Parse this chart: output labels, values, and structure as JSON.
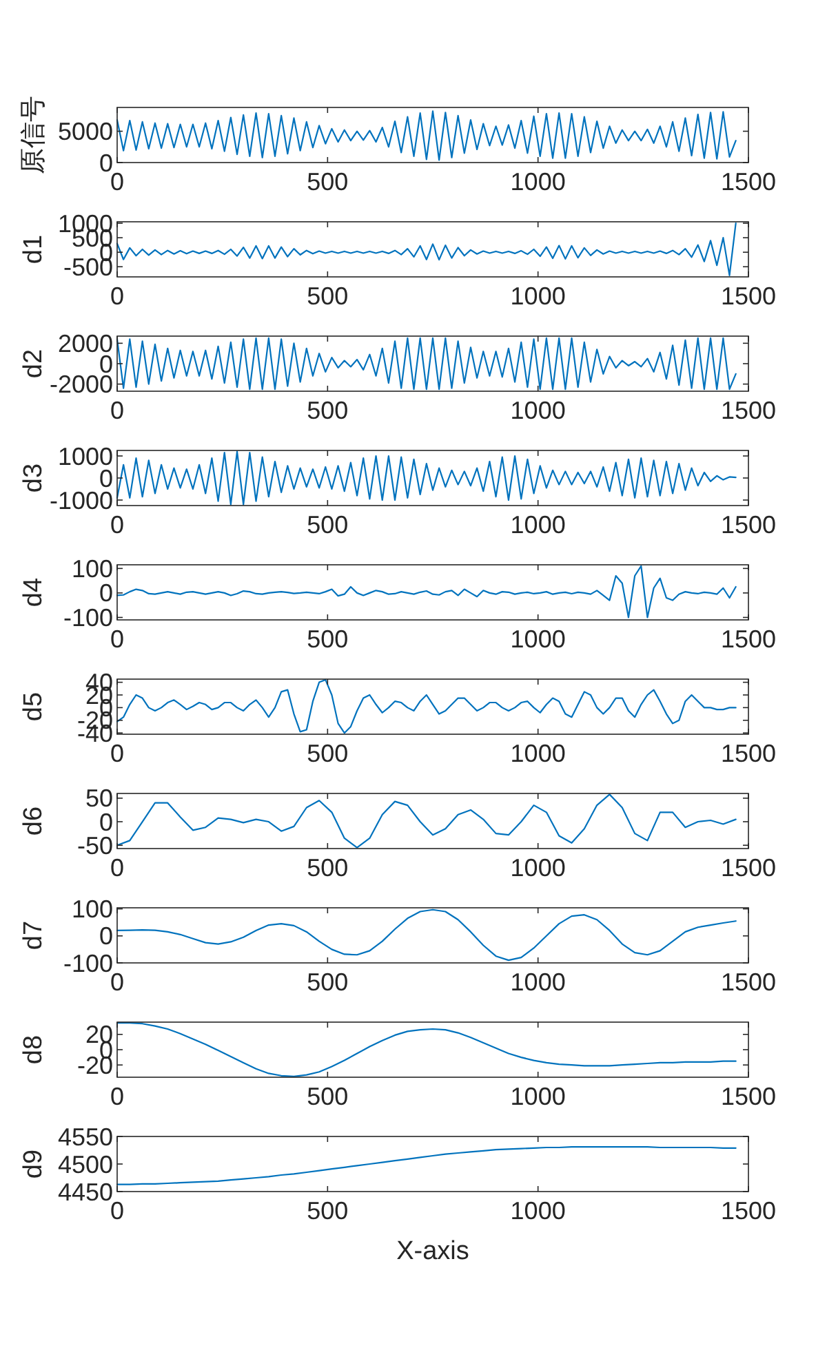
{
  "chart_data": [
    {
      "type": "line",
      "ylabel": "原信号",
      "xlim": [
        0,
        1500
      ],
      "xticks": [
        0,
        500,
        1000,
        1500
      ],
      "ylim": [
        0,
        8800
      ],
      "yticks": [
        0,
        5000
      ],
      "x": [
        0,
        15,
        30,
        45,
        60,
        75,
        90,
        105,
        120,
        135,
        150,
        165,
        180,
        195,
        210,
        225,
        240,
        255,
        270,
        285,
        300,
        315,
        330,
        345,
        360,
        375,
        390,
        405,
        420,
        435,
        450,
        465,
        480,
        495,
        510,
        525,
        540,
        555,
        570,
        585,
        600,
        615,
        630,
        645,
        660,
        675,
        690,
        705,
        720,
        735,
        750,
        765,
        780,
        795,
        810,
        825,
        840,
        855,
        870,
        885,
        900,
        915,
        930,
        945,
        960,
        975,
        990,
        1005,
        1020,
        1035,
        1050,
        1065,
        1080,
        1095,
        1110,
        1125,
        1140,
        1155,
        1170,
        1185,
        1200,
        1215,
        1230,
        1245,
        1260,
        1275,
        1290,
        1305,
        1320,
        1335,
        1350,
        1365,
        1380,
        1395,
        1410,
        1425,
        1440,
        1455,
        1470
      ],
      "series": [
        {
          "color": "#0072bd",
          "values": [
            6800,
            1900,
            6700,
            2000,
            6500,
            2200,
            6300,
            2300,
            6200,
            2400,
            6100,
            2500,
            6100,
            2500,
            6300,
            2200,
            6700,
            1800,
            7200,
            1300,
            7600,
            1000,
            7900,
            800,
            7800,
            1000,
            7500,
            1400,
            7100,
            1900,
            6500,
            2400,
            5900,
            3000,
            5400,
            3300,
            5200,
            3500,
            5000,
            3600,
            5100,
            3300,
            5600,
            2500,
            6600,
            1600,
            7300,
            1000,
            7900,
            500,
            8200,
            400,
            8000,
            800,
            7500,
            1500,
            6800,
            2100,
            6200,
            2700,
            5800,
            2800,
            6000,
            2300,
            6700,
            1500,
            7400,
            1000,
            7800,
            700,
            7900,
            700,
            7800,
            1000,
            7300,
            1600,
            6600,
            2300,
            5800,
            3100,
            5200,
            3500,
            5000,
            3500,
            5300,
            3100,
            5800,
            2500,
            6500,
            1800,
            7100,
            1100,
            7700,
            700,
            8000,
            600,
            8100,
            900,
            3500
          ]
        }
      ]
    },
    {
      "type": "line",
      "ylabel": "d1",
      "xlim": [
        0,
        1500
      ],
      "xticks": [
        0,
        500,
        1000,
        1500
      ],
      "ylim": [
        -850,
        1050
      ],
      "yticks": [
        -500,
        0,
        500,
        1000
      ],
      "x": [
        0,
        15,
        30,
        45,
        60,
        75,
        90,
        105,
        120,
        135,
        150,
        165,
        180,
        195,
        210,
        225,
        240,
        255,
        270,
        285,
        300,
        315,
        330,
        345,
        360,
        375,
        390,
        405,
        420,
        435,
        450,
        465,
        480,
        495,
        510,
        525,
        540,
        555,
        570,
        585,
        600,
        615,
        630,
        645,
        660,
        675,
        690,
        705,
        720,
        735,
        750,
        765,
        780,
        795,
        810,
        825,
        840,
        855,
        870,
        885,
        900,
        915,
        930,
        945,
        960,
        975,
        990,
        1005,
        1020,
        1035,
        1050,
        1065,
        1080,
        1095,
        1110,
        1125,
        1140,
        1155,
        1170,
        1185,
        1200,
        1215,
        1230,
        1245,
        1260,
        1275,
        1290,
        1305,
        1320,
        1335,
        1350,
        1365,
        1380,
        1395,
        1410,
        1425,
        1440,
        1455,
        1470
      ],
      "series": [
        {
          "color": "#0072bd",
          "values": [
            300,
            -250,
            150,
            -120,
            100,
            -100,
            80,
            -80,
            60,
            -60,
            50,
            -50,
            40,
            -40,
            40,
            -40,
            60,
            -70,
            100,
            -130,
            170,
            -200,
            220,
            -220,
            220,
            -200,
            180,
            -150,
            120,
            -90,
            60,
            -50,
            40,
            -30,
            30,
            -30,
            30,
            -30,
            30,
            -30,
            30,
            -30,
            30,
            -40,
            60,
            -80,
            120,
            -160,
            220,
            -250,
            280,
            -260,
            240,
            -200,
            160,
            -120,
            80,
            -60,
            40,
            -30,
            30,
            -30,
            30,
            -40,
            50,
            -70,
            100,
            -140,
            180,
            -210,
            230,
            -230,
            220,
            -190,
            150,
            -110,
            80,
            -60,
            40,
            -30,
            30,
            -30,
            30,
            -30,
            30,
            -30,
            40,
            -40,
            60,
            -80,
            120,
            -170,
            250,
            -320,
            400,
            -450,
            500,
            -800,
            1000
          ]
        }
      ]
    },
    {
      "type": "line",
      "ylabel": "d2",
      "xlim": [
        0,
        1500
      ],
      "xticks": [
        0,
        500,
        1000,
        1500
      ],
      "ylim": [
        -2700,
        2700
      ],
      "yticks": [
        -2000,
        0,
        2000
      ],
      "x": [
        0,
        15,
        30,
        45,
        60,
        75,
        90,
        105,
        120,
        135,
        150,
        165,
        180,
        195,
        210,
        225,
        240,
        255,
        270,
        285,
        300,
        315,
        330,
        345,
        360,
        375,
        390,
        405,
        420,
        435,
        450,
        465,
        480,
        495,
        510,
        525,
        540,
        555,
        570,
        585,
        600,
        615,
        630,
        645,
        660,
        675,
        690,
        705,
        720,
        735,
        750,
        765,
        780,
        795,
        810,
        825,
        840,
        855,
        870,
        885,
        900,
        915,
        930,
        945,
        960,
        975,
        990,
        1005,
        1020,
        1035,
        1050,
        1065,
        1080,
        1095,
        1110,
        1125,
        1140,
        1155,
        1170,
        1185,
        1200,
        1215,
        1230,
        1245,
        1260,
        1275,
        1290,
        1305,
        1320,
        1335,
        1350,
        1365,
        1380,
        1395,
        1410,
        1425,
        1440,
        1455,
        1470
      ],
      "series": [
        {
          "color": "#0072bd",
          "values": [
            2400,
            -2400,
            2400,
            -2300,
            2200,
            -2000,
            1900,
            -1700,
            1500,
            -1400,
            1300,
            -1200,
            1200,
            -1200,
            1300,
            -1500,
            1700,
            -1900,
            2100,
            -2300,
            2400,
            -2500,
            2500,
            -2500,
            2500,
            -2500,
            2400,
            -2200,
            2000,
            -1800,
            1500,
            -1200,
            1000,
            -800,
            600,
            -400,
            300,
            -300,
            400,
            -600,
            900,
            -1200,
            1500,
            -1900,
            2200,
            -2400,
            2500,
            -2500,
            2500,
            -2500,
            2500,
            -2500,
            2500,
            -2400,
            2200,
            -1900,
            1600,
            -1400,
            1200,
            -1200,
            1200,
            -1300,
            1500,
            -1800,
            2100,
            -2300,
            2400,
            -2500,
            2500,
            -2500,
            2500,
            -2500,
            2500,
            -2300,
            2100,
            -1800,
            1400,
            -1000,
            700,
            -400,
            300,
            -200,
            200,
            -300,
            500,
            -800,
            1100,
            -1500,
            1800,
            -2100,
            2300,
            -2400,
            2500,
            -2500,
            2500,
            -2500,
            2500,
            -2500,
            -1000
          ]
        }
      ]
    },
    {
      "type": "line",
      "ylabel": "d3",
      "xlim": [
        0,
        1500
      ],
      "xticks": [
        0,
        500,
        1000,
        1500
      ],
      "ylim": [
        -1250,
        1250
      ],
      "yticks": [
        -1000,
        0,
        1000
      ],
      "x": [
        0,
        15,
        30,
        45,
        60,
        75,
        90,
        105,
        120,
        135,
        150,
        165,
        180,
        195,
        210,
        225,
        240,
        255,
        270,
        285,
        300,
        315,
        330,
        345,
        360,
        375,
        390,
        405,
        420,
        435,
        450,
        465,
        480,
        495,
        510,
        525,
        540,
        555,
        570,
        585,
        600,
        615,
        630,
        645,
        660,
        675,
        690,
        705,
        720,
        735,
        750,
        765,
        780,
        795,
        810,
        825,
        840,
        855,
        870,
        885,
        900,
        915,
        930,
        945,
        960,
        975,
        990,
        1005,
        1020,
        1035,
        1050,
        1065,
        1080,
        1095,
        1110,
        1125,
        1140,
        1155,
        1170,
        1185,
        1200,
        1215,
        1230,
        1245,
        1260,
        1275,
        1290,
        1305,
        1320,
        1335,
        1350,
        1365,
        1380,
        1395,
        1410,
        1425,
        1440,
        1455,
        1470
      ],
      "series": [
        {
          "color": "#0072bd",
          "values": [
            -900,
            600,
            -900,
            900,
            -850,
            800,
            -700,
            600,
            -500,
            450,
            -450,
            400,
            -500,
            600,
            -700,
            900,
            -1050,
            1150,
            -1200,
            1200,
            -1200,
            1150,
            -1050,
            950,
            -850,
            750,
            -650,
            550,
            -500,
            450,
            -400,
            400,
            -450,
            500,
            -500,
            550,
            -600,
            700,
            -800,
            900,
            -950,
            1000,
            -1000,
            1000,
            -1000,
            950,
            -900,
            850,
            -750,
            650,
            -550,
            450,
            -400,
            350,
            -300,
            300,
            -350,
            450,
            -600,
            750,
            -850,
            950,
            -1000,
            1000,
            -950,
            850,
            -700,
            550,
            -450,
            350,
            -300,
            300,
            -300,
            250,
            -250,
            300,
            -400,
            500,
            -600,
            700,
            -800,
            850,
            -900,
            900,
            -850,
            800,
            -800,
            750,
            -700,
            650,
            -550,
            450,
            -350,
            250,
            -150,
            100,
            -80,
            50,
            30
          ]
        }
      ]
    },
    {
      "type": "line",
      "ylabel": "d4",
      "xlim": [
        0,
        1500
      ],
      "xticks": [
        0,
        500,
        1000,
        1500
      ],
      "ylim": [
        -110,
        115
      ],
      "yticks": [
        -100,
        0,
        100
      ],
      "x": [
        0,
        15,
        30,
        45,
        60,
        75,
        90,
        105,
        120,
        135,
        150,
        165,
        180,
        195,
        210,
        225,
        240,
        255,
        270,
        285,
        300,
        315,
        330,
        345,
        360,
        375,
        390,
        405,
        420,
        435,
        450,
        465,
        480,
        495,
        510,
        525,
        540,
        555,
        570,
        585,
        600,
        615,
        630,
        645,
        660,
        675,
        690,
        705,
        720,
        735,
        750,
        765,
        780,
        795,
        810,
        825,
        840,
        855,
        870,
        885,
        900,
        915,
        930,
        945,
        960,
        975,
        990,
        1005,
        1020,
        1035,
        1050,
        1065,
        1080,
        1095,
        1110,
        1125,
        1140,
        1155,
        1170,
        1185,
        1200,
        1215,
        1230,
        1245,
        1260,
        1275,
        1290,
        1305,
        1320,
        1335,
        1350,
        1365,
        1380,
        1395,
        1410,
        1425,
        1440,
        1455,
        1470
      ],
      "series": [
        {
          "color": "#0072bd",
          "values": [
            -10,
            -8,
            5,
            15,
            10,
            -3,
            -5,
            0,
            5,
            0,
            -5,
            3,
            5,
            0,
            -5,
            0,
            5,
            0,
            -10,
            -3,
            8,
            5,
            -3,
            -5,
            0,
            3,
            5,
            2,
            -2,
            0,
            3,
            0,
            -3,
            5,
            15,
            -12,
            -5,
            25,
            0,
            -10,
            0,
            10,
            5,
            -5,
            -3,
            5,
            0,
            -5,
            3,
            8,
            -5,
            -8,
            5,
            10,
            -10,
            15,
            0,
            -15,
            10,
            0,
            -5,
            5,
            3,
            -5,
            0,
            3,
            -3,
            0,
            5,
            -5,
            0,
            3,
            -3,
            3,
            0,
            -5,
            10,
            -10,
            -30,
            70,
            40,
            -100,
            70,
            110,
            -100,
            20,
            60,
            -20,
            -30,
            -5,
            5,
            0,
            -3,
            3,
            0,
            -5,
            20,
            -20,
            25
          ]
        }
      ]
    },
    {
      "type": "line",
      "ylabel": "d5",
      "xlim": [
        0,
        1500
      ],
      "xticks": [
        0,
        500,
        1000,
        1500
      ],
      "ylim": [
        -42,
        45
      ],
      "yticks": [
        -40,
        -20,
        0,
        20,
        40
      ],
      "x": [
        0,
        15,
        30,
        45,
        60,
        75,
        90,
        105,
        120,
        135,
        150,
        165,
        180,
        195,
        210,
        225,
        240,
        255,
        270,
        285,
        300,
        315,
        330,
        345,
        360,
        375,
        390,
        405,
        420,
        435,
        450,
        465,
        480,
        495,
        510,
        525,
        540,
        555,
        570,
        585,
        600,
        615,
        630,
        645,
        660,
        675,
        690,
        705,
        720,
        735,
        750,
        765,
        780,
        795,
        810,
        825,
        840,
        855,
        870,
        885,
        900,
        915,
        930,
        945,
        960,
        975,
        990,
        1005,
        1020,
        1035,
        1050,
        1065,
        1080,
        1095,
        1110,
        1125,
        1140,
        1155,
        1170,
        1185,
        1200,
        1215,
        1230,
        1245,
        1260,
        1275,
        1290,
        1305,
        1320,
        1335,
        1350,
        1365,
        1380,
        1395,
        1410,
        1425,
        1440,
        1455,
        1470
      ],
      "series": [
        {
          "color": "#0072bd",
          "values": [
            -22,
            -15,
            5,
            20,
            15,
            0,
            -5,
            0,
            8,
            12,
            5,
            -3,
            2,
            8,
            5,
            -3,
            0,
            8,
            8,
            0,
            -5,
            5,
            12,
            0,
            -15,
            0,
            25,
            28,
            -10,
            -38,
            -35,
            10,
            40,
            44,
            20,
            -25,
            -40,
            -30,
            -5,
            15,
            20,
            5,
            -8,
            0,
            10,
            8,
            0,
            -5,
            10,
            20,
            5,
            -10,
            -5,
            5,
            15,
            15,
            5,
            -5,
            0,
            8,
            8,
            0,
            -5,
            0,
            8,
            10,
            0,
            -8,
            5,
            15,
            10,
            -10,
            -15,
            5,
            25,
            20,
            0,
            -10,
            0,
            15,
            15,
            -5,
            -15,
            5,
            20,
            28,
            10,
            -10,
            -25,
            -20,
            10,
            20,
            10,
            0,
            0,
            -3,
            -3,
            0,
            0
          ]
        }
      ]
    },
    {
      "type": "line",
      "ylabel": "d6",
      "xlim": [
        0,
        1500
      ],
      "xticks": [
        0,
        500,
        1000,
        1500
      ],
      "ylim": [
        -57,
        60
      ],
      "yticks": [
        -50,
        0,
        50
      ],
      "x": [
        0,
        30,
        60,
        90,
        120,
        150,
        180,
        210,
        240,
        270,
        300,
        330,
        360,
        390,
        420,
        450,
        480,
        510,
        540,
        570,
        600,
        630,
        660,
        690,
        720,
        750,
        780,
        810,
        840,
        870,
        900,
        930,
        960,
        990,
        1020,
        1050,
        1080,
        1110,
        1140,
        1170,
        1200,
        1230,
        1260,
        1290,
        1320,
        1350,
        1380,
        1410,
        1440,
        1470
      ],
      "series": [
        {
          "color": "#0072bd",
          "values": [
            -50,
            -40,
            0,
            40,
            40,
            10,
            -18,
            -12,
            8,
            5,
            -2,
            5,
            0,
            -20,
            -10,
            30,
            45,
            20,
            -35,
            -55,
            -35,
            15,
            43,
            35,
            0,
            -28,
            -15,
            15,
            25,
            5,
            -25,
            -28,
            0,
            35,
            20,
            -30,
            -45,
            -15,
            35,
            58,
            30,
            -25,
            -40,
            20,
            20,
            -12,
            0,
            3,
            -5,
            5
          ]
        }
      ]
    },
    {
      "type": "line",
      "ylabel": "d7",
      "xlim": [
        0,
        1500
      ],
      "xticks": [
        0,
        500,
        1000,
        1500
      ],
      "ylim": [
        -100,
        104
      ],
      "yticks": [
        -100,
        0,
        100
      ],
      "x": [
        0,
        30,
        60,
        90,
        120,
        150,
        180,
        210,
        240,
        270,
        300,
        330,
        360,
        390,
        420,
        450,
        480,
        510,
        540,
        570,
        600,
        630,
        660,
        690,
        720,
        750,
        780,
        810,
        840,
        870,
        900,
        930,
        960,
        990,
        1020,
        1050,
        1080,
        1110,
        1140,
        1170,
        1200,
        1230,
        1260,
        1290,
        1320,
        1350,
        1380,
        1410,
        1440,
        1470
      ],
      "series": [
        {
          "color": "#0072bd",
          "values": [
            20,
            21,
            22,
            21,
            15,
            5,
            -10,
            -25,
            -30,
            -22,
            -5,
            20,
            40,
            45,
            38,
            15,
            -20,
            -50,
            -68,
            -70,
            -55,
            -20,
            25,
            65,
            90,
            97,
            90,
            60,
            15,
            -35,
            -75,
            -90,
            -80,
            -45,
            0,
            45,
            73,
            78,
            60,
            20,
            -30,
            -62,
            -70,
            -55,
            -20,
            15,
            32,
            40,
            48,
            55
          ]
        }
      ]
    },
    {
      "type": "line",
      "ylabel": "d8",
      "xlim": [
        0,
        1500
      ],
      "xticks": [
        0,
        500,
        1000,
        1500
      ],
      "ylim": [
        -36,
        36
      ],
      "yticks": [
        -20,
        0,
        20
      ],
      "x": [
        0,
        30,
        60,
        90,
        120,
        150,
        180,
        210,
        240,
        270,
        300,
        330,
        360,
        390,
        420,
        450,
        480,
        510,
        540,
        570,
        600,
        630,
        660,
        690,
        720,
        750,
        780,
        810,
        840,
        870,
        900,
        930,
        960,
        990,
        1020,
        1050,
        1080,
        1110,
        1140,
        1170,
        1200,
        1230,
        1260,
        1290,
        1320,
        1350,
        1380,
        1410,
        1440,
        1470
      ],
      "series": [
        {
          "color": "#0072bd",
          "values": [
            35,
            35,
            34,
            31,
            27,
            21,
            14,
            7,
            -1,
            -9,
            -17,
            -25,
            -31,
            -34,
            -35,
            -33,
            -29,
            -22,
            -14,
            -5,
            4,
            12,
            19,
            24,
            26,
            27,
            26,
            22,
            16,
            9,
            2,
            -5,
            -10,
            -14,
            -17,
            -19,
            -20,
            -21,
            -21,
            -21,
            -20,
            -19,
            -18,
            -17,
            -17,
            -16,
            -16,
            -16,
            -15,
            -15
          ]
        }
      ]
    },
    {
      "type": "line",
      "ylabel": "d9",
      "xlabel": "X-axis",
      "xlim": [
        0,
        1500
      ],
      "xticks": [
        0,
        500,
        1000,
        1500
      ],
      "ylim": [
        4450,
        4550
      ],
      "yticks": [
        4450,
        4500,
        4550
      ],
      "x": [
        0,
        30,
        60,
        90,
        120,
        150,
        180,
        210,
        240,
        270,
        300,
        330,
        360,
        390,
        420,
        450,
        480,
        510,
        540,
        570,
        600,
        630,
        660,
        690,
        720,
        750,
        780,
        810,
        840,
        870,
        900,
        930,
        960,
        990,
        1020,
        1050,
        1080,
        1110,
        1140,
        1170,
        1200,
        1230,
        1260,
        1290,
        1320,
        1350,
        1380,
        1410,
        1440,
        1470
      ],
      "series": [
        {
          "color": "#0072bd",
          "values": [
            4463,
            4463,
            4464,
            4464,
            4465,
            4466,
            4467,
            4468,
            4469,
            4471,
            4473,
            4475,
            4477,
            4480,
            4482,
            4485,
            4488,
            4491,
            4494,
            4497,
            4500,
            4503,
            4506,
            4509,
            4512,
            4515,
            4518,
            4520,
            4522,
            4524,
            4526,
            4527,
            4528,
            4529,
            4530,
            4530,
            4531,
            4531,
            4531,
            4531,
            4531,
            4531,
            4531,
            4530,
            4530,
            4530,
            4530,
            4530,
            4529,
            4529
          ]
        }
      ]
    }
  ]
}
